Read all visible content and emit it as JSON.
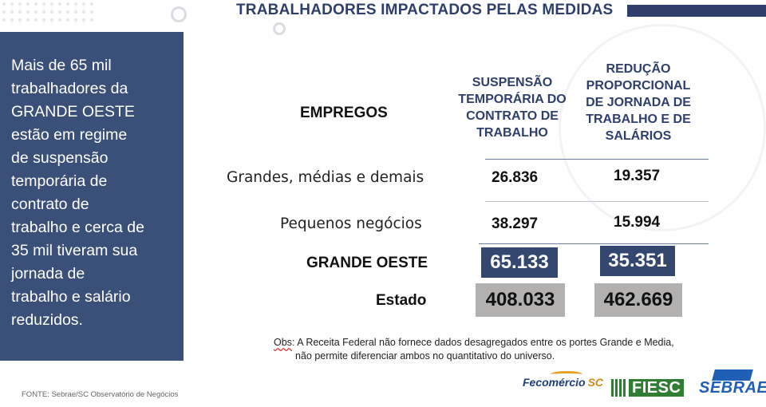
{
  "title": "TRABALHADORES IMPACTADOS PELAS MEDIDAS",
  "summary": {
    "lines": [
      "Mais de 65 mil",
      "trabalhadores da",
      "GRANDE OESTE",
      "estão em regime",
      "de suspensão",
      "temporária de",
      "contrato de",
      "trabalho e cerca de",
      "35 mil tiveram sua",
      "jornada de",
      "trabalho e salário",
      "reduzidos."
    ]
  },
  "table": {
    "row_header": "EMPREGOS",
    "columns": [
      {
        "lines": [
          "SUSPENSÃO",
          "TEMPORÁRIA DO",
          "CONTRATO DE",
          "TRABALHO"
        ]
      },
      {
        "lines": [
          "REDUÇÃO",
          "PROPORCIONAL",
          "DE JORNADA DE",
          "TRABALHO E DE",
          "SALÁRIOS"
        ]
      }
    ],
    "rows": [
      {
        "label": "Grandes, médias e demais",
        "values": [
          "26.836",
          "19.357"
        ]
      },
      {
        "label": "Pequenos negócios",
        "values": [
          "38.297",
          "15.994"
        ]
      },
      {
        "label": "GRANDE OESTE",
        "values": [
          "65.133",
          "35.351"
        ]
      },
      {
        "label": "Estado",
        "values": [
          "408.033",
          "462.669"
        ]
      }
    ]
  },
  "obs": {
    "key": "Obs",
    "line1": ": A Receita Federal não fornece dados desagregados  entre os portes Grande e Media,",
    "line2": "não permite diferenciar ambos no quantitativo do universo."
  },
  "source": "FONTE: Sebrae/SC Observatório de Negócios",
  "logos": {
    "fecomercio": "Fecomércio",
    "fecomercio_suffix": "SC",
    "fiesc": "FIESC",
    "sebrae": "SEBRAE"
  },
  "colors": {
    "navy": "#2f3f6c",
    "panel": "#3a5078",
    "box_blue": "#34476f",
    "box_gray": "#b3b0b0"
  }
}
